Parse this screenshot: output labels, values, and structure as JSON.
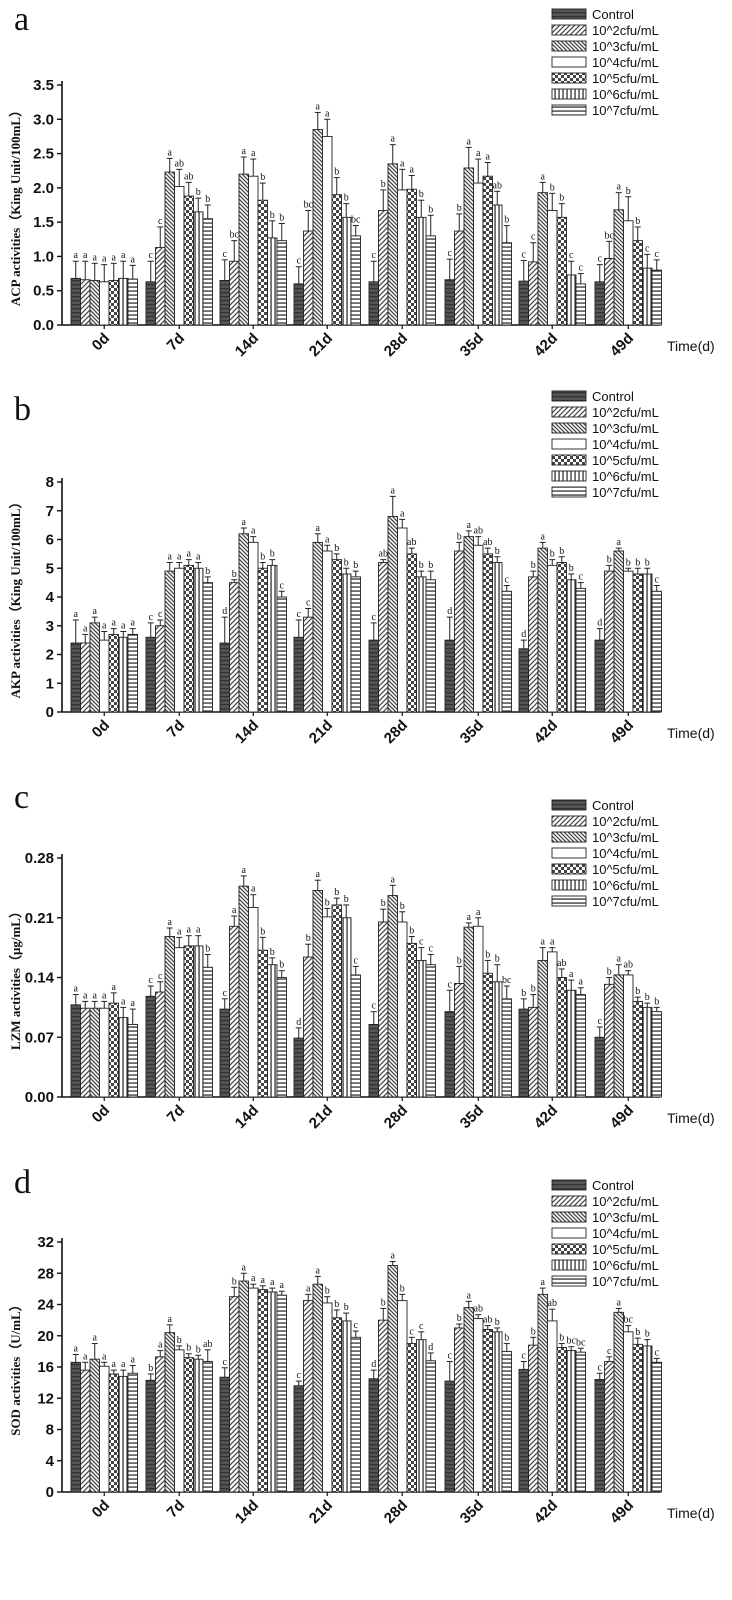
{
  "chart_data": [
    {
      "type": "bar",
      "panel": "a",
      "ylabel": "ACP activities（King Unit/100mL）",
      "xlabel": "Time(d)",
      "ylim": [
        0,
        3.5
      ],
      "yticks": [
        "0.0",
        "0.5",
        "1.0",
        "1.5",
        "2.0",
        "2.5",
        "3.0",
        "3.5"
      ],
      "categories": [
        "0d",
        "7d",
        "14d",
        "21d",
        "28d",
        "35d",
        "42d",
        "49d"
      ],
      "legend_placement": "top-right",
      "series": [
        {
          "name": "Control",
          "pattern": "control",
          "values": [
            0.68,
            0.63,
            0.65,
            0.6,
            0.63,
            0.66,
            0.64,
            0.63
          ],
          "errors": [
            0.25,
            0.3,
            0.3,
            0.25,
            0.3,
            0.3,
            0.3,
            0.25
          ],
          "labels": [
            "a",
            "c",
            "c",
            "c",
            "c",
            "c",
            "c",
            "c"
          ]
        },
        {
          "name": "10^2cfu/mL",
          "pattern": "diag",
          "values": [
            0.66,
            1.13,
            0.93,
            1.37,
            1.67,
            1.37,
            0.92,
            0.97
          ],
          "errors": [
            0.27,
            0.3,
            0.3,
            0.3,
            0.3,
            0.25,
            0.28,
            0.25
          ],
          "labels": [
            "a",
            "c",
            "bc",
            "bc",
            "b",
            "b",
            "c",
            "bc"
          ]
        },
        {
          "name": "10^3cfu/mL",
          "pattern": "revdiag",
          "values": [
            0.65,
            2.23,
            2.2,
            2.85,
            2.35,
            2.29,
            1.93,
            1.68
          ],
          "errors": [
            0.25,
            0.2,
            0.25,
            0.25,
            0.28,
            0.3,
            0.15,
            0.25
          ],
          "labels": [
            "a",
            "a",
            "a",
            "a",
            "a",
            "a",
            "a",
            "a"
          ]
        },
        {
          "name": "10^4cfu/mL",
          "pattern": "blank",
          "values": [
            0.63,
            2.02,
            2.17,
            2.75,
            1.97,
            2.07,
            1.67,
            1.52
          ],
          "errors": [
            0.25,
            0.25,
            0.25,
            0.25,
            0.3,
            0.35,
            0.25,
            0.35
          ],
          "labels": [
            "a",
            "ab",
            "a",
            "a",
            "a",
            "a",
            "b",
            "b"
          ]
        },
        {
          "name": "10^5cfu/mL",
          "pattern": "check",
          "values": [
            0.65,
            1.88,
            1.82,
            1.9,
            1.98,
            2.17,
            1.57,
            1.23
          ],
          "errors": [
            0.25,
            0.2,
            0.25,
            0.25,
            0.2,
            0.2,
            0.2,
            0.2
          ],
          "labels": [
            "a",
            "ab",
            "b",
            "b",
            "a",
            "a",
            "b",
            "b"
          ]
        },
        {
          "name": "10^6cfu/mL",
          "pattern": "vert",
          "values": [
            0.68,
            1.65,
            1.27,
            1.57,
            1.57,
            1.75,
            0.73,
            0.83
          ],
          "errors": [
            0.25,
            0.2,
            0.25,
            0.2,
            0.25,
            0.2,
            0.2,
            0.2
          ],
          "labels": [
            "a",
            "b",
            "b",
            "b",
            "b",
            "ab",
            "c",
            "c"
          ]
        },
        {
          "name": "10^7cfu/mL",
          "pattern": "horiz",
          "values": [
            0.67,
            1.55,
            1.23,
            1.3,
            1.3,
            1.2,
            0.6,
            0.8
          ],
          "errors": [
            0.2,
            0.2,
            0.25,
            0.15,
            0.3,
            0.25,
            0.15,
            0.15
          ],
          "labels": [
            "a",
            "b",
            "b",
            "bc",
            "b",
            "b",
            "c",
            "c"
          ]
        }
      ]
    },
    {
      "type": "bar",
      "panel": "b",
      "ylabel": "AKP activities（King Unit/100mL）",
      "xlabel": "Time(d)",
      "ylim": [
        0,
        8
      ],
      "yticks": [
        "0",
        "1",
        "2",
        "3",
        "4",
        "5",
        "6",
        "7",
        "8"
      ],
      "categories": [
        "0d",
        "7d",
        "14d",
        "21d",
        "28d",
        "35d",
        "42d",
        "49d"
      ],
      "legend_placement": "top-right",
      "series": [
        {
          "name": "Control",
          "pattern": "control",
          "values": [
            2.4,
            2.6,
            2.4,
            2.6,
            2.5,
            2.5,
            2.2,
            2.5
          ],
          "errors": [
            0.8,
            0.5,
            0.9,
            0.6,
            0.6,
            0.8,
            0.3,
            0.4
          ],
          "labels": [
            "a",
            "c",
            "d",
            "c",
            "c",
            "d",
            "d",
            "d"
          ]
        },
        {
          "name": "10^2cfu/mL",
          "pattern": "diag",
          "values": [
            2.4,
            3.0,
            4.5,
            3.3,
            5.2,
            5.6,
            4.7,
            4.9
          ],
          "errors": [
            0.3,
            0.2,
            0.1,
            0.3,
            0.1,
            0.3,
            0.2,
            0.2
          ],
          "labels": [
            "a",
            "c",
            "b",
            "c",
            "ab",
            "b",
            "b",
            "b"
          ]
        },
        {
          "name": "10^3cfu/mL",
          "pattern": "revdiag",
          "values": [
            3.1,
            4.9,
            6.2,
            5.9,
            6.8,
            6.1,
            5.7,
            5.6
          ],
          "errors": [
            0.2,
            0.3,
            0.2,
            0.3,
            0.7,
            0.2,
            0.2,
            0.1
          ],
          "labels": [
            "a",
            "a",
            "a",
            "a",
            "a",
            "a",
            "a",
            "a"
          ]
        },
        {
          "name": "10^4cfu/mL",
          "pattern": "blank",
          "values": [
            2.5,
            5.0,
            5.9,
            5.6,
            6.4,
            5.8,
            5.1,
            4.9
          ],
          "errors": [
            0.3,
            0.2,
            0.2,
            0.2,
            0.3,
            0.3,
            0.2,
            0.1
          ],
          "labels": [
            "a",
            "a",
            "a",
            "a",
            "a",
            "ab",
            "b",
            "b"
          ]
        },
        {
          "name": "10^5cfu/mL",
          "pattern": "check",
          "values": [
            2.7,
            5.1,
            5.0,
            5.3,
            5.5,
            5.5,
            5.2,
            4.8
          ],
          "errors": [
            0.2,
            0.2,
            0.2,
            0.2,
            0.2,
            0.2,
            0.2,
            0.2
          ],
          "labels": [
            "a",
            "a",
            "b",
            "b",
            "ab",
            "ab",
            "b",
            "b"
          ]
        },
        {
          "name": "10^6cfu/mL",
          "pattern": "vert",
          "values": [
            2.6,
            5.0,
            5.1,
            4.8,
            4.7,
            5.2,
            4.6,
            4.8
          ],
          "errors": [
            0.2,
            0.2,
            0.2,
            0.2,
            0.2,
            0.2,
            0.2,
            0.2
          ],
          "labels": [
            "a",
            "a",
            "b",
            "b",
            "b",
            "b",
            "b",
            "b"
          ]
        },
        {
          "name": "10^7cfu/mL",
          "pattern": "horiz",
          "values": [
            2.7,
            4.5,
            4.0,
            4.7,
            4.6,
            4.2,
            4.3,
            4.2
          ],
          "errors": [
            0.2,
            0.2,
            0.2,
            0.2,
            0.3,
            0.2,
            0.2,
            0.2
          ],
          "labels": [
            "a",
            "b",
            "c",
            "b",
            "b",
            "c",
            "c",
            "c"
          ]
        }
      ]
    },
    {
      "type": "bar",
      "panel": "c",
      "ylabel": "LZM activities（μg/mL）",
      "xlabel": "Time(d)",
      "ylim": [
        0,
        0.28
      ],
      "yticks": [
        "0.00",
        "0.07",
        "0.14",
        "0.21",
        "0.28"
      ],
      "categories": [
        "0d",
        "7d",
        "14d",
        "21d",
        "28d",
        "35d",
        "42d",
        "49d"
      ],
      "legend_placement": "top-right",
      "series": [
        {
          "name": "Control",
          "pattern": "control",
          "values": [
            0.108,
            0.118,
            0.103,
            0.069,
            0.085,
            0.1,
            0.103,
            0.07
          ],
          "errors": [
            0.012,
            0.012,
            0.012,
            0.012,
            0.015,
            0.025,
            0.012,
            0.012
          ],
          "labels": [
            "a",
            "c",
            "c",
            "d",
            "c",
            "c",
            "b",
            "c"
          ]
        },
        {
          "name": "10^2cfu/mL",
          "pattern": "diag",
          "values": [
            0.104,
            0.123,
            0.2,
            0.164,
            0.205,
            0.133,
            0.105,
            0.132
          ],
          "errors": [
            0.008,
            0.012,
            0.012,
            0.015,
            0.015,
            0.02,
            0.015,
            0.008
          ],
          "labels": [
            "a",
            "c",
            "a",
            "b",
            "b",
            "b",
            "b",
            "b"
          ]
        },
        {
          "name": "10^3cfu/mL",
          "pattern": "revdiag",
          "values": [
            0.104,
            0.188,
            0.247,
            0.242,
            0.236,
            0.199,
            0.16,
            0.143
          ],
          "errors": [
            0.008,
            0.01,
            0.012,
            0.012,
            0.012,
            0.005,
            0.015,
            0.012
          ],
          "labels": [
            "a",
            "a",
            "a",
            "a",
            "a",
            "a",
            "a",
            "a"
          ]
        },
        {
          "name": "10^4cfu/mL",
          "pattern": "blank",
          "values": [
            0.104,
            0.175,
            0.222,
            0.211,
            0.205,
            0.2,
            0.17,
            0.143
          ],
          "errors": [
            0.008,
            0.012,
            0.015,
            0.01,
            0.012,
            0.01,
            0.005,
            0.005
          ],
          "labels": [
            "a",
            "a",
            "a",
            "b",
            "b",
            "a",
            "a",
            "ab"
          ]
        },
        {
          "name": "10^5cfu/mL",
          "pattern": "check",
          "values": [
            0.11,
            0.177,
            0.172,
            0.225,
            0.18,
            0.145,
            0.14,
            0.112
          ],
          "errors": [
            0.012,
            0.012,
            0.015,
            0.008,
            0.008,
            0.015,
            0.01,
            0.005
          ],
          "labels": [
            "a",
            "a",
            "b",
            "b",
            "b",
            "b",
            "ab",
            "b"
          ]
        },
        {
          "name": "10^6cfu/mL",
          "pattern": "vert",
          "values": [
            0.093,
            0.177,
            0.155,
            0.21,
            0.16,
            0.135,
            0.125,
            0.105
          ],
          "errors": [
            0.012,
            0.012,
            0.008,
            0.015,
            0.015,
            0.02,
            0.012,
            0.005
          ],
          "labels": [
            "a",
            "a",
            "b",
            "b",
            "c",
            "b",
            "a",
            "b"
          ]
        },
        {
          "name": "10^7cfu/mL",
          "pattern": "horiz",
          "values": [
            0.085,
            0.152,
            0.14,
            0.143,
            0.155,
            0.115,
            0.12,
            0.1
          ],
          "errors": [
            0.018,
            0.015,
            0.008,
            0.01,
            0.012,
            0.015,
            0.008,
            0.005
          ],
          "labels": [
            "a",
            "b",
            "b",
            "c",
            "c",
            "bc",
            "a",
            "b"
          ]
        }
      ]
    },
    {
      "type": "bar",
      "panel": "d",
      "ylabel": "SOD activities（U/mL）",
      "xlabel": "Time(d)",
      "ylim": [
        0,
        32
      ],
      "yticks": [
        "0",
        "4",
        "8",
        "12",
        "16",
        "20",
        "24",
        "28",
        "32"
      ],
      "categories": [
        "0d",
        "7d",
        "14d",
        "21d",
        "28d",
        "35d",
        "42d",
        "49d"
      ],
      "legend_placement": "top-right",
      "series": [
        {
          "name": "Control",
          "pattern": "control",
          "values": [
            16.6,
            14.3,
            14.7,
            13.6,
            14.5,
            14.2,
            15.7,
            14.4
          ],
          "errors": [
            1.0,
            0.8,
            1.2,
            0.6,
            1.1,
            2.5,
            1.0,
            0.8
          ],
          "labels": [
            "a",
            "b",
            "c",
            "c",
            "d",
            "c",
            "c",
            "c"
          ]
        },
        {
          "name": "10^2cfu/mL",
          "pattern": "diag",
          "values": [
            15.6,
            17.3,
            25.0,
            24.5,
            22.0,
            21.0,
            18.8,
            16.7
          ],
          "errors": [
            1.0,
            0.8,
            1.2,
            0.8,
            1.5,
            0.5,
            1.0,
            0.6
          ],
          "labels": [
            "a",
            "a",
            "b",
            "a",
            "b",
            "b",
            "b",
            "c"
          ]
        },
        {
          "name": "10^3cfu/mL",
          "pattern": "revdiag",
          "values": [
            17.0,
            20.4,
            27.0,
            26.6,
            29.0,
            23.6,
            25.3,
            23.0
          ],
          "errors": [
            2.0,
            1.0,
            1.0,
            1.0,
            0.5,
            0.8,
            0.8,
            0.5
          ],
          "labels": [
            "a",
            "a",
            "a",
            "a",
            "a",
            "a",
            "a",
            "a"
          ]
        },
        {
          "name": "10^4cfu/mL",
          "pattern": "blank",
          "values": [
            16.1,
            18.2,
            26.1,
            24.2,
            24.5,
            22.2,
            21.9,
            20.5
          ],
          "errors": [
            0.5,
            0.5,
            0.5,
            0.8,
            0.8,
            0.5,
            1.5,
            0.8
          ],
          "labels": [
            "a",
            "b",
            "a",
            "b",
            "b",
            "ab",
            "ab",
            "bc"
          ]
        },
        {
          "name": "10^5cfu/mL",
          "pattern": "check",
          "values": [
            15.1,
            17.2,
            25.9,
            22.3,
            19.0,
            20.8,
            18.5,
            18.9
          ],
          "errors": [
            0.5,
            0.5,
            0.5,
            1.0,
            0.8,
            0.5,
            0.5,
            0.8
          ],
          "labels": [
            "a",
            "b",
            "a",
            "b",
            "c",
            "ab",
            "b",
            "b"
          ]
        },
        {
          "name": "10^6cfu/mL",
          "pattern": "vert",
          "values": [
            14.8,
            17.0,
            25.6,
            21.9,
            19.5,
            20.5,
            18.1,
            18.7
          ],
          "errors": [
            0.8,
            0.5,
            0.5,
            1.0,
            1.0,
            0.5,
            0.5,
            0.8
          ],
          "labels": [
            "a",
            "b",
            "a",
            "b",
            "c",
            "b",
            "bc",
            "b"
          ]
        },
        {
          "name": "10^7cfu/mL",
          "pattern": "horiz",
          "values": [
            15.2,
            16.7,
            25.2,
            19.8,
            16.8,
            18.0,
            17.9,
            16.6
          ],
          "errors": [
            1.0,
            1.5,
            0.5,
            0.8,
            1.0,
            1.0,
            0.5,
            0.5
          ],
          "labels": [
            "a",
            "ab",
            "a",
            "c",
            "d",
            "b",
            "bc",
            "c"
          ]
        }
      ]
    }
  ]
}
